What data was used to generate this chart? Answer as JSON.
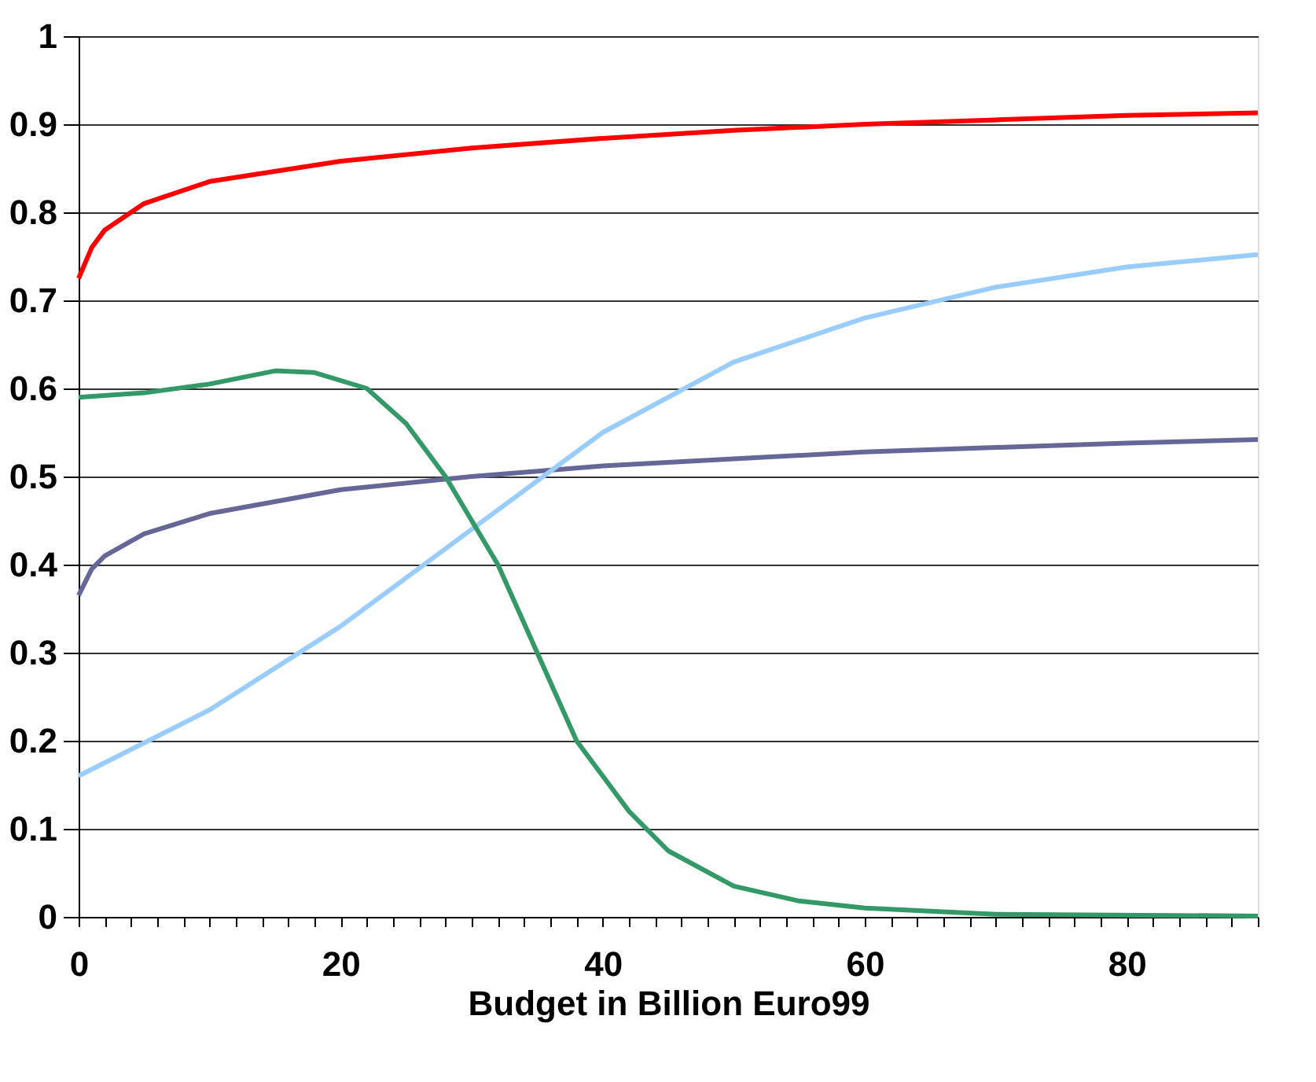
{
  "chart_data": {
    "type": "line",
    "xlabel": "Budget in Billion Euro99",
    "grid": "y",
    "marker": "none",
    "line_style": "solid",
    "xlim": [
      0,
      90
    ],
    "ylim": [
      0,
      1
    ],
    "xticks": [
      0,
      {
        "value": 2,
        "label": null
      },
      {
        "value": 4,
        "label": null
      },
      {
        "value": 6,
        "label": null
      },
      {
        "value": 8,
        "label": null
      },
      {
        "value": 10,
        "label": null
      },
      {
        "value": 12,
        "label": null
      },
      {
        "value": 14,
        "label": null
      },
      {
        "value": 16,
        "label": null
      },
      {
        "value": 18,
        "label": null
      },
      20,
      {
        "value": 22,
        "label": null
      },
      {
        "value": 24,
        "label": null
      },
      {
        "value": 26,
        "label": null
      },
      {
        "value": 28,
        "label": null
      },
      {
        "value": 30,
        "label": null
      },
      {
        "value": 32,
        "label": null
      },
      {
        "value": 34,
        "label": null
      },
      {
        "value": 36,
        "label": null
      },
      {
        "value": 38,
        "label": null
      },
      40,
      {
        "value": 42,
        "label": null
      },
      {
        "value": 44,
        "label": null
      },
      {
        "value": 46,
        "label": null
      },
      {
        "value": 48,
        "label": null
      },
      {
        "value": 50,
        "label": null
      },
      {
        "value": 52,
        "label": null
      },
      {
        "value": 54,
        "label": null
      },
      {
        "value": 56,
        "label": null
      },
      {
        "value": 58,
        "label": null
      },
      60,
      {
        "value": 62,
        "label": null
      },
      {
        "value": 64,
        "label": null
      },
      {
        "value": 66,
        "label": null
      },
      {
        "value": 68,
        "label": null
      },
      {
        "value": 70,
        "label": null
      },
      {
        "value": 72,
        "label": null
      },
      {
        "value": 74,
        "label": null
      },
      {
        "value": 76,
        "label": null
      },
      {
        "value": 78,
        "label": null
      },
      80,
      {
        "value": 82,
        "label": null
      },
      {
        "value": 84,
        "label": null
      },
      {
        "value": 86,
        "label": null
      },
      {
        "value": 88,
        "label": null
      },
      {
        "value": 90,
        "label": null
      }
    ],
    "yticks": [
      0,
      0.1,
      0.2,
      0.3,
      0.4,
      0.5,
      0.6,
      0.7,
      0.8,
      0.9,
      1
    ],
    "series": [
      {
        "color": "#ff0000",
        "x": [
          0,
          1,
          2,
          5,
          10,
          20,
          30,
          40,
          50,
          60,
          70,
          80,
          90
        ],
        "values": [
          0.725,
          0.76,
          0.78,
          0.81,
          0.835,
          0.858,
          0.873,
          0.884,
          0.893,
          0.9,
          0.905,
          0.91,
          0.913
        ]
      },
      {
        "color": "#666699",
        "x": [
          0,
          1,
          2,
          5,
          10,
          20,
          30,
          40,
          50,
          60,
          70,
          80,
          90
        ],
        "values": [
          0.365,
          0.395,
          0.41,
          0.435,
          0.458,
          0.485,
          0.5,
          0.512,
          0.52,
          0.528,
          0.533,
          0.538,
          0.542
        ]
      },
      {
        "color": "#99ccff",
        "x": [
          0,
          10,
          20,
          30,
          40,
          50,
          60,
          70,
          80,
          90
        ],
        "values": [
          0.16,
          0.235,
          0.33,
          0.44,
          0.55,
          0.63,
          0.68,
          0.715,
          0.738,
          0.752
        ]
      },
      {
        "color": "#339966",
        "x": [
          0,
          5,
          10,
          15,
          18,
          22,
          25,
          28,
          32,
          35,
          38,
          42,
          45,
          50,
          55,
          60,
          70,
          90
        ],
        "values": [
          0.59,
          0.595,
          0.605,
          0.62,
          0.618,
          0.6,
          0.56,
          0.5,
          0.4,
          0.3,
          0.2,
          0.12,
          0.075,
          0.035,
          0.018,
          0.01,
          0.003,
          0.001
        ]
      }
    ]
  }
}
